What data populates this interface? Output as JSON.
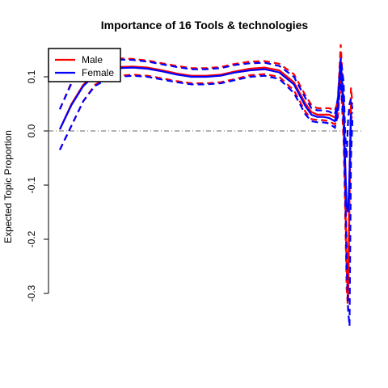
{
  "chart_data": {
    "type": "line",
    "title": "Importance of 16 Tools & technologies",
    "xlabel": "",
    "ylabel": "Expected Topic Proportion",
    "ylim": [
      -0.3,
      0.1
    ],
    "yticks": [
      -0.3,
      -0.2,
      -0.1,
      0.0,
      0.1
    ],
    "ytick_labels": [
      "-0.3",
      "-0.2",
      "-0.1",
      "0.0",
      "0.1"
    ],
    "xlim": [
      0,
      1
    ],
    "reference_line": 0.0,
    "grid": false,
    "legend_position": "top-left",
    "series": [
      {
        "name": "Male",
        "color": "#ff0000",
        "x": [
          0.0,
          0.04,
          0.08,
          0.12,
          0.16,
          0.2,
          0.25,
          0.3,
          0.35,
          0.4,
          0.45,
          0.5,
          0.55,
          0.6,
          0.65,
          0.7,
          0.75,
          0.8,
          0.84,
          0.86,
          0.88,
          0.9,
          0.92,
          0.94,
          0.95,
          0.96,
          0.97,
          0.975,
          0.98,
          0.985,
          0.99,
          0.995,
          1.0
        ],
        "mean": [
          0.003,
          0.05,
          0.085,
          0.105,
          0.115,
          0.118,
          0.119,
          0.117,
          0.112,
          0.106,
          0.102,
          0.102,
          0.104,
          0.11,
          0.115,
          0.117,
          0.112,
          0.09,
          0.05,
          0.035,
          0.03,
          0.03,
          0.03,
          0.025,
          0.04,
          0.13,
          0.02,
          -0.1,
          -0.25,
          -0.31,
          -0.1,
          0.05,
          0.04
        ],
        "lower": [
          -0.035,
          0.01,
          0.055,
          0.085,
          0.098,
          0.102,
          0.104,
          0.102,
          0.097,
          0.092,
          0.088,
          0.088,
          0.09,
          0.096,
          0.103,
          0.105,
          0.1,
          0.075,
          0.035,
          0.022,
          0.02,
          0.02,
          0.018,
          0.012,
          0.025,
          0.1,
          -0.02,
          -0.14,
          -0.29,
          -0.33,
          -0.13,
          0.02,
          0.03
        ],
        "upper": [
          0.04,
          0.09,
          0.115,
          0.127,
          0.133,
          0.134,
          0.133,
          0.13,
          0.125,
          0.12,
          0.116,
          0.116,
          0.118,
          0.124,
          0.128,
          0.129,
          0.124,
          0.105,
          0.065,
          0.048,
          0.042,
          0.042,
          0.042,
          0.038,
          0.055,
          0.16,
          0.06,
          -0.06,
          -0.21,
          -0.29,
          -0.07,
          0.08,
          0.05
        ]
      },
      {
        "name": "Female",
        "color": "#0000ff",
        "x": [
          0.0,
          0.04,
          0.08,
          0.12,
          0.16,
          0.2,
          0.25,
          0.3,
          0.35,
          0.4,
          0.45,
          0.5,
          0.55,
          0.6,
          0.65,
          0.7,
          0.75,
          0.8,
          0.84,
          0.86,
          0.88,
          0.9,
          0.92,
          0.94,
          0.95,
          0.96,
          0.97,
          0.975,
          0.98,
          0.985,
          0.99,
          0.995,
          1.0
        ],
        "mean": [
          0.003,
          0.048,
          0.083,
          0.103,
          0.113,
          0.116,
          0.117,
          0.115,
          0.11,
          0.104,
          0.1,
          0.1,
          0.102,
          0.108,
          0.112,
          0.114,
          0.108,
          0.086,
          0.045,
          0.03,
          0.026,
          0.026,
          0.024,
          0.018,
          0.045,
          0.13,
          0.05,
          -0.05,
          -0.14,
          -0.15,
          -0.08,
          0.03,
          0.035
        ],
        "lower": [
          -0.035,
          0.01,
          0.055,
          0.083,
          0.095,
          0.1,
          0.102,
          0.1,
          0.095,
          0.09,
          0.086,
          0.086,
          0.088,
          0.094,
          0.1,
          0.102,
          0.096,
          0.07,
          0.03,
          0.018,
          0.016,
          0.016,
          0.014,
          0.006,
          0.03,
          0.1,
          0.01,
          -0.1,
          -0.24,
          -0.33,
          -0.36,
          -0.05,
          0.02
        ],
        "upper": [
          0.04,
          0.088,
          0.113,
          0.125,
          0.131,
          0.132,
          0.131,
          0.128,
          0.123,
          0.118,
          0.114,
          0.114,
          0.116,
          0.122,
          0.125,
          0.126,
          0.12,
          0.1,
          0.06,
          0.042,
          0.038,
          0.038,
          0.036,
          0.03,
          0.06,
          0.135,
          0.09,
          0.0,
          -0.05,
          0.02,
          0.05,
          0.06,
          0.04
        ]
      }
    ]
  }
}
